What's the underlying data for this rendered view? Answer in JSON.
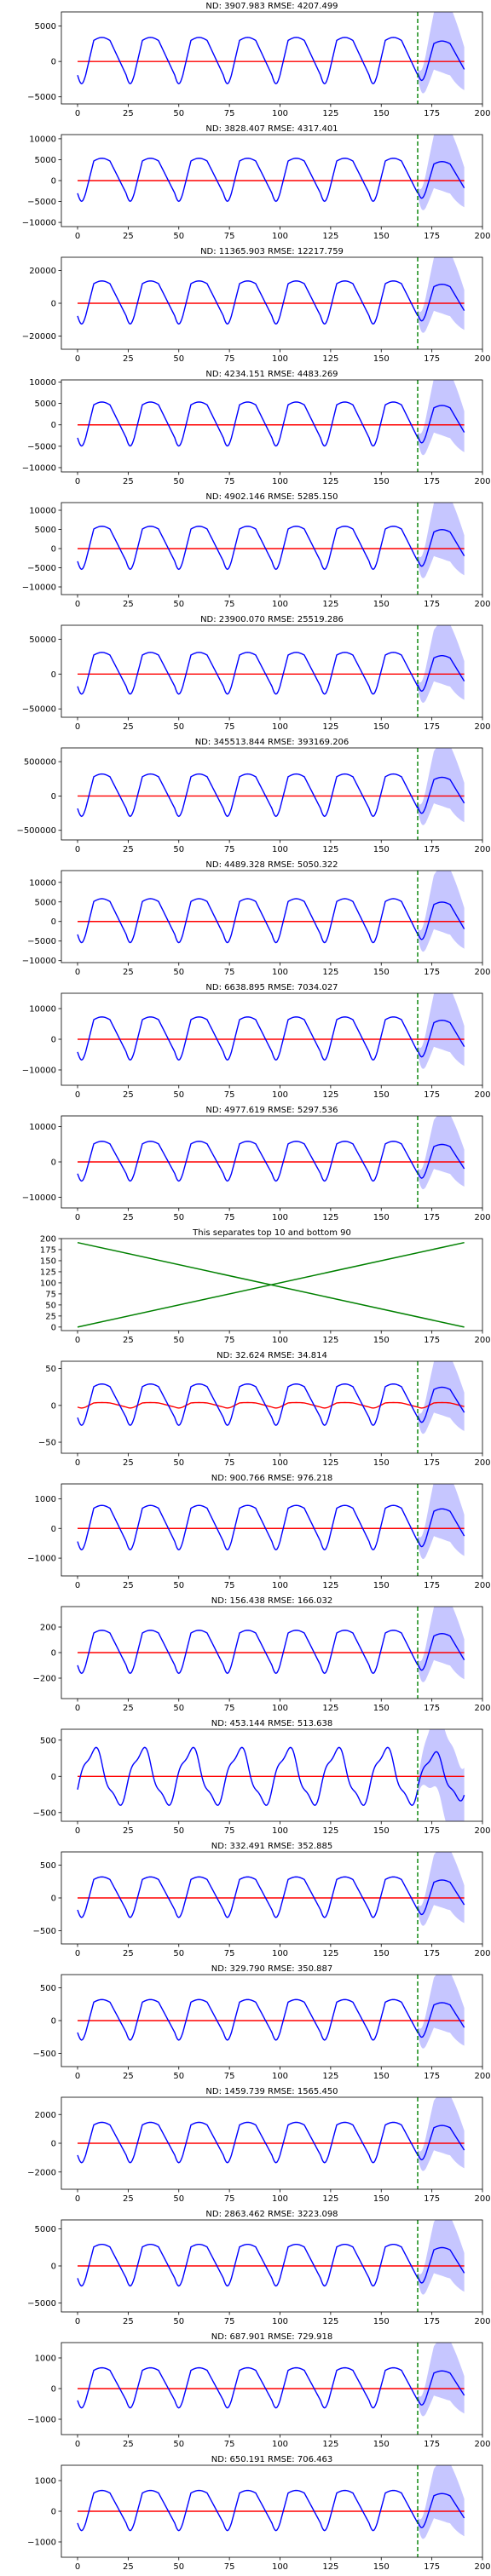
{
  "figure": {
    "num_panels": 21
  },
  "chart_data": [
    {
      "type": "line",
      "title": "ND:  3907.983 RMSE:  4207.499",
      "xlim": [
        -8,
        200
      ],
      "ylim": [
        -6000,
        7000
      ],
      "xticks": [
        0,
        25,
        50,
        75,
        100,
        125,
        150,
        175,
        200
      ],
      "yticks": [
        -5000,
        0,
        5000
      ],
      "amplitude": 3500,
      "forecast_start": 168,
      "vline_x": 168,
      "series": [
        {
          "name": "history",
          "color": "#0000ff",
          "x_range": [
            0,
            168
          ]
        },
        {
          "name": "forecast",
          "color": "#0000ff",
          "x_range": [
            168,
            192
          ]
        },
        {
          "name": "prediction",
          "color": "#ff0000",
          "x_range": [
            0,
            192
          ]
        },
        {
          "name": "interval",
          "color": "#8080ff",
          "x_range": [
            168,
            192
          ]
        }
      ]
    },
    {
      "type": "line",
      "title": "ND:  3828.407 RMSE:  4317.401",
      "xlim": [
        -8,
        200
      ],
      "ylim": [
        -11000,
        11000
      ],
      "xticks": [
        0,
        25,
        50,
        75,
        100,
        125,
        150,
        175,
        200
      ],
      "yticks": [
        -10000,
        -5000,
        0,
        5000,
        10000
      ],
      "amplitude": 5500,
      "forecast_start": 168,
      "vline_x": 168
    },
    {
      "type": "line",
      "title": "ND:  11365.903 RMSE:  12217.759",
      "xlim": [
        -8,
        200
      ],
      "ylim": [
        -28000,
        28000
      ],
      "xticks": [
        0,
        25,
        50,
        75,
        100,
        125,
        150,
        175,
        200
      ],
      "yticks": [
        -20000,
        0,
        20000
      ],
      "amplitude": 14000,
      "forecast_start": 168,
      "vline_x": 168
    },
    {
      "type": "line",
      "title": "ND:  4234.151 RMSE:  4483.269",
      "xlim": [
        -8,
        200
      ],
      "ylim": [
        -11000,
        10500
      ],
      "xticks": [
        0,
        25,
        50,
        75,
        100,
        125,
        150,
        175,
        200
      ],
      "yticks": [
        -10000,
        -5000,
        0,
        5000,
        10000
      ],
      "amplitude": 5500,
      "forecast_start": 168,
      "vline_x": 168
    },
    {
      "type": "line",
      "title": "ND:  4902.146 RMSE:  5285.150",
      "xlim": [
        -8,
        200
      ],
      "ylim": [
        -12000,
        12000
      ],
      "xticks": [
        0,
        25,
        50,
        75,
        100,
        125,
        150,
        175,
        200
      ],
      "yticks": [
        -10000,
        -5000,
        0,
        5000,
        10000
      ],
      "amplitude": 6000,
      "forecast_start": 168,
      "vline_x": 168
    },
    {
      "type": "line",
      "title": "ND:  23900.070 RMSE:  25519.286",
      "xlim": [
        -8,
        200
      ],
      "ylim": [
        -62000,
        70000
      ],
      "xticks": [
        0,
        25,
        50,
        75,
        100,
        125,
        150,
        175,
        200
      ],
      "yticks": [
        -50000,
        0,
        50000
      ],
      "amplitude": 32000,
      "forecast_start": 168,
      "vline_x": 168
    },
    {
      "type": "line",
      "title": "ND:  345513.844 RMSE:  393169.206",
      "xlim": [
        -8,
        200
      ],
      "ylim": [
        -640000,
        700000
      ],
      "xticks": [
        0,
        25,
        50,
        75,
        100,
        125,
        150,
        175,
        200
      ],
      "yticks": [
        -500000,
        0,
        500000
      ],
      "amplitude": 330000,
      "forecast_start": 168,
      "vline_x": 168
    },
    {
      "type": "line",
      "title": "ND:  4489.328 RMSE:  5050.322",
      "xlim": [
        -8,
        200
      ],
      "ylim": [
        -10500,
        13000
      ],
      "xticks": [
        0,
        25,
        50,
        75,
        100,
        125,
        150,
        175,
        200
      ],
      "yticks": [
        -10000,
        -5000,
        0,
        5000,
        10000
      ],
      "amplitude": 6000,
      "forecast_start": 168,
      "vline_x": 168
    },
    {
      "type": "line",
      "title": "ND:  6638.895 RMSE:  7034.027",
      "xlim": [
        -8,
        200
      ],
      "ylim": [
        -15000,
        15000
      ],
      "xticks": [
        0,
        25,
        50,
        75,
        100,
        125,
        150,
        175,
        200
      ],
      "yticks": [
        -10000,
        0,
        10000
      ],
      "amplitude": 7500,
      "forecast_start": 168,
      "vline_x": 168
    },
    {
      "type": "line",
      "title": "ND:  4977.619 RMSE:  5297.536",
      "xlim": [
        -8,
        200
      ],
      "ylim": [
        -13000,
        13000
      ],
      "xticks": [
        0,
        25,
        50,
        75,
        100,
        125,
        150,
        175,
        200
      ],
      "yticks": [
        -10000,
        0,
        10000
      ],
      "amplitude": 6000,
      "forecast_start": 168,
      "vline_x": 168
    },
    {
      "type": "line",
      "variant": "separator",
      "title": "This separates top 10 and bottom 90",
      "xlim": [
        -8,
        200
      ],
      "ylim": [
        -8,
        200
      ],
      "xticks": [
        0,
        25,
        50,
        75,
        100,
        125,
        150,
        175,
        200
      ],
      "yticks": [
        0,
        25,
        50,
        75,
        100,
        125,
        150,
        175,
        200
      ],
      "series": [
        {
          "name": "rising",
          "color": "#008000",
          "x": [
            0,
            191
          ],
          "y": [
            0,
            191
          ]
        },
        {
          "name": "falling",
          "color": "#008000",
          "x": [
            0,
            191
          ],
          "y": [
            191,
            0
          ]
        }
      ]
    },
    {
      "type": "line",
      "title": "ND:  32.624 RMSE:  34.814",
      "xlim": [
        -8,
        200
      ],
      "ylim": [
        -65,
        60
      ],
      "xticks": [
        0,
        25,
        50,
        75,
        100,
        125,
        150,
        175,
        200
      ],
      "yticks": [
        -50,
        0,
        50
      ],
      "amplitude": 30,
      "pred_amplitude": 4,
      "forecast_start": 168,
      "vline_x": 168
    },
    {
      "type": "line",
      "title": "ND:  900.766 RMSE:  976.218",
      "xlim": [
        -8,
        200
      ],
      "ylim": [
        -1600,
        1500
      ],
      "xticks": [
        0,
        25,
        50,
        75,
        100,
        125,
        150,
        175,
        200
      ],
      "yticks": [
        -1000,
        0,
        1000
      ],
      "amplitude": 800,
      "forecast_start": 168,
      "vline_x": 168
    },
    {
      "type": "line",
      "title": "ND:  156.438 RMSE:  166.032",
      "xlim": [
        -8,
        200
      ],
      "ylim": [
        -360,
        360
      ],
      "xticks": [
        0,
        25,
        50,
        75,
        100,
        125,
        150,
        175,
        200
      ],
      "yticks": [
        -200,
        0,
        200
      ],
      "amplitude": 180,
      "forecast_start": 168,
      "vline_x": 168
    },
    {
      "type": "line",
      "variant": "irregular",
      "title": "ND:  453.144 RMSE:  513.638",
      "xlim": [
        -8,
        200
      ],
      "ylim": [
        -620,
        650
      ],
      "xticks": [
        0,
        25,
        50,
        75,
        100,
        125,
        150,
        175,
        200
      ],
      "yticks": [
        -500,
        0,
        500
      ],
      "amplitude": 430,
      "forecast_start": 168,
      "vline_x": 168
    },
    {
      "type": "line",
      "title": "ND:  332.491 RMSE:  352.885",
      "xlim": [
        -8,
        200
      ],
      "ylim": [
        -700,
        700
      ],
      "xticks": [
        0,
        25,
        50,
        75,
        100,
        125,
        150,
        175,
        200
      ],
      "yticks": [
        -500,
        0,
        500
      ],
      "amplitude": 330,
      "forecast_start": 168,
      "vline_x": 168
    },
    {
      "type": "line",
      "title": "ND:  329.790 RMSE:  350.887",
      "xlim": [
        -8,
        200
      ],
      "ylim": [
        -700,
        700
      ],
      "xticks": [
        0,
        25,
        50,
        75,
        100,
        125,
        150,
        175,
        200
      ],
      "yticks": [
        -500,
        0,
        500
      ],
      "amplitude": 330,
      "forecast_start": 168,
      "vline_x": 168
    },
    {
      "type": "line",
      "title": "ND:  1459.739 RMSE:  1565.450",
      "xlim": [
        -8,
        200
      ],
      "ylim": [
        -3200,
        3200
      ],
      "xticks": [
        0,
        25,
        50,
        75,
        100,
        125,
        150,
        175,
        200
      ],
      "yticks": [
        -2000,
        0,
        2000
      ],
      "amplitude": 1500,
      "forecast_start": 168,
      "vline_x": 168
    },
    {
      "type": "line",
      "title": "ND:  2863.462 RMSE:  3223.098",
      "xlim": [
        -8,
        200
      ],
      "ylim": [
        -6200,
        6200
      ],
      "xticks": [
        0,
        25,
        50,
        75,
        100,
        125,
        150,
        175,
        200
      ],
      "yticks": [
        -5000,
        0,
        5000
      ],
      "amplitude": 3000,
      "forecast_start": 168,
      "vline_x": 168
    },
    {
      "type": "line",
      "title": "ND:  687.901 RMSE:  729.918",
      "xlim": [
        -8,
        200
      ],
      "ylim": [
        -1500,
        1500
      ],
      "xticks": [
        0,
        25,
        50,
        75,
        100,
        125,
        150,
        175,
        200
      ],
      "yticks": [
        -1000,
        0,
        1000
      ],
      "amplitude": 700,
      "forecast_start": 168,
      "vline_x": 168
    },
    {
      "type": "line",
      "title": "ND:  650.191 RMSE:  706.463",
      "xlim": [
        -8,
        200
      ],
      "ylim": [
        -1500,
        1500
      ],
      "xticks": [
        0,
        25,
        50,
        75,
        100,
        125,
        150,
        175,
        200
      ],
      "yticks": [
        -1000,
        0,
        1000
      ],
      "amplitude": 700,
      "forecast_start": 168,
      "vline_x": 168
    }
  ]
}
